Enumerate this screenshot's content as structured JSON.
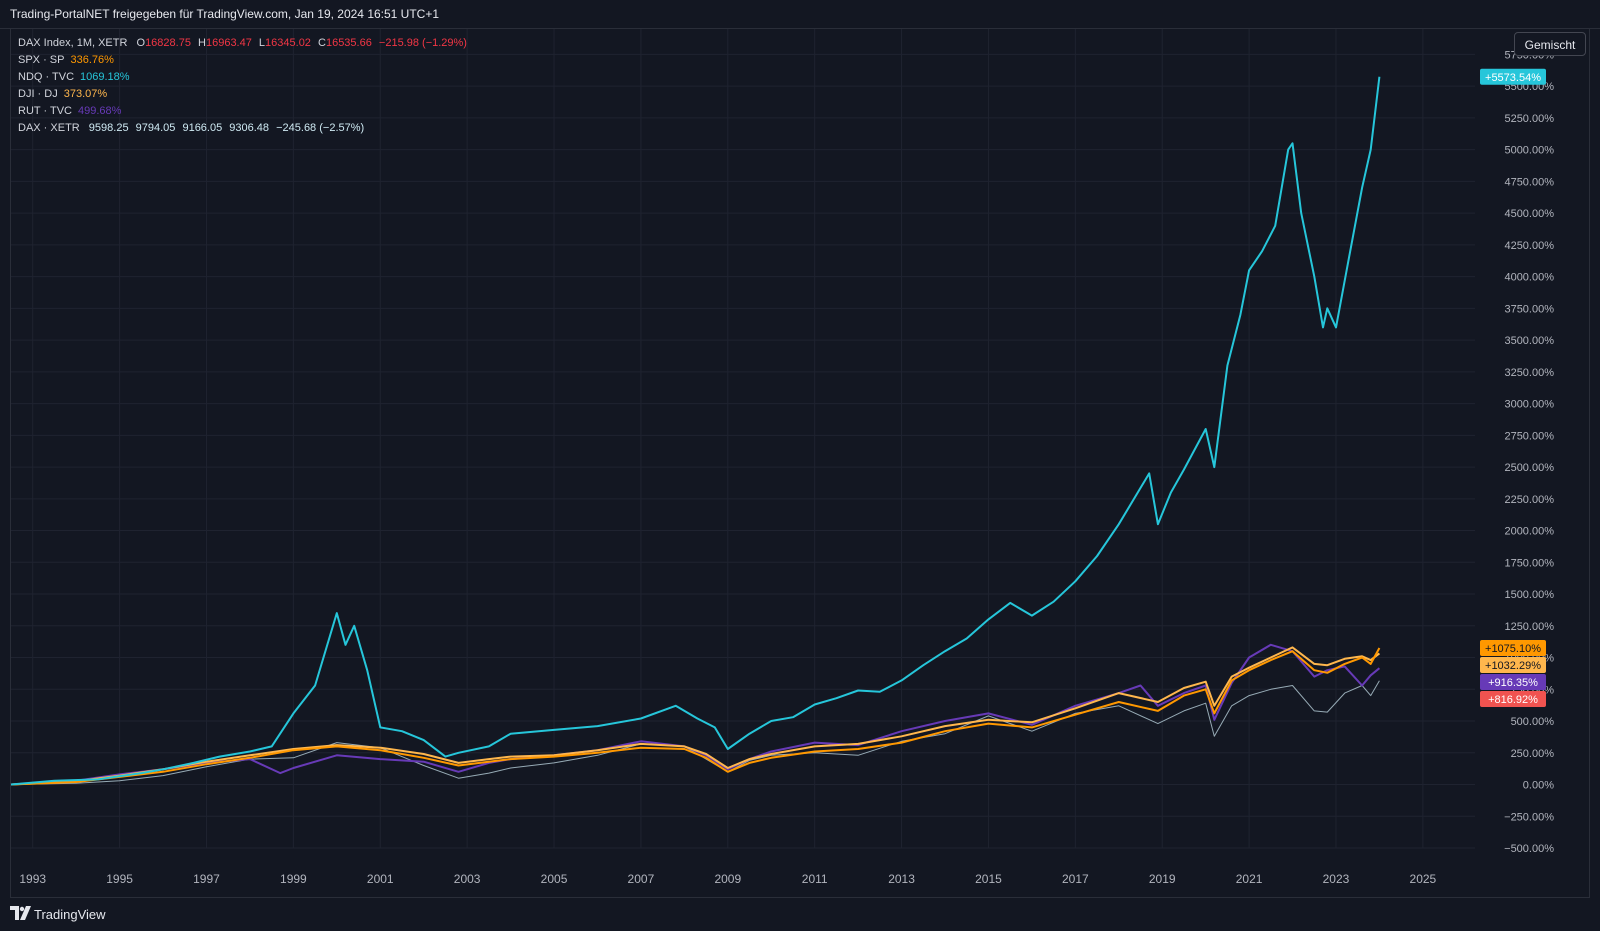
{
  "header": {
    "title": "Trading-PortalNET freigegeben für TradingView.com, Jan 19, 2024 16:51 UTC+1"
  },
  "legend": {
    "main": {
      "symbol": "DAX Index, 1M, XETR",
      "o_label": "O",
      "o": "16828.75",
      "h_label": "H",
      "h": "16963.47",
      "l_label": "L",
      "l": "16345.02",
      "c_label": "C",
      "c": "16535.66",
      "change": "−215.98 (−1.29%)",
      "color": "#f23645"
    },
    "rows": [
      {
        "symbol": "SPX · SP",
        "value": "336.76%",
        "color": "#ff9800"
      },
      {
        "symbol": "NDQ · TVC",
        "value": "1069.18%",
        "color": "#26c6da"
      },
      {
        "symbol": "DJI · DJ",
        "value": "373.07%",
        "color": "#ffb74d"
      },
      {
        "symbol": "RUT · TVC",
        "value": "499.68%",
        "color": "#673ab7"
      }
    ],
    "dax": {
      "symbol": "DAX · XETR",
      "o": "9598.25",
      "h": "9794.05",
      "l": "9166.05",
      "c": "9306.48",
      "change": "−245.68 (−2.57%)",
      "color": "#cfeaf3"
    }
  },
  "scale_button": {
    "label": "Gemischt"
  },
  "footer": {
    "brand": "TradingView",
    "icon": "tradingview-logo-icon"
  },
  "chart_data": {
    "type": "line",
    "y_unit": "%",
    "ylim": [
      -500,
      5950
    ],
    "xlim": [
      1992.5,
      2026.2
    ],
    "y_ticks": [
      "5750.00%",
      "5500.00%",
      "5250.00%",
      "5000.00%",
      "4750.00%",
      "4500.00%",
      "4250.00%",
      "4000.00%",
      "3750.00%",
      "3500.00%",
      "3250.00%",
      "3000.00%",
      "2750.00%",
      "2500.00%",
      "2250.00%",
      "2000.00%",
      "1750.00%",
      "1500.00%",
      "1250.00%",
      "1000.00%",
      "750.00%",
      "500.00%",
      "250.00%",
      "0.00%",
      "−250.00%",
      "−500.00%"
    ],
    "y_tick_values": [
      5750,
      5500,
      5250,
      5000,
      4750,
      4500,
      4250,
      4000,
      3750,
      3500,
      3250,
      3000,
      2750,
      2500,
      2250,
      2000,
      1750,
      1500,
      1250,
      1000,
      750,
      500,
      250,
      0,
      -250,
      -500
    ],
    "x_ticks": [
      "1993",
      "1995",
      "1997",
      "1999",
      "2001",
      "2003",
      "2005",
      "2007",
      "2009",
      "2011",
      "2013",
      "2015",
      "2017",
      "2019",
      "2021",
      "2023",
      "2025"
    ],
    "x_tick_values": [
      1993,
      1995,
      1997,
      1999,
      2001,
      2003,
      2005,
      2007,
      2009,
      2011,
      2013,
      2015,
      2017,
      2019,
      2021,
      2023,
      2025
    ],
    "grid": true,
    "series": [
      {
        "name": "NDQ · TVC",
        "color": "#26c6da",
        "last_label": "+5573.54%",
        "points": [
          [
            1992.5,
            0
          ],
          [
            1993.5,
            30
          ],
          [
            1994.5,
            40
          ],
          [
            1995.5,
            90
          ],
          [
            1996,
            120
          ],
          [
            1996.7,
            170
          ],
          [
            1997.3,
            220
          ],
          [
            1998,
            260
          ],
          [
            1998.5,
            300
          ],
          [
            1999,
            560
          ],
          [
            1999.5,
            780
          ],
          [
            2000,
            1350
          ],
          [
            2000.2,
            1100
          ],
          [
            2000.4,
            1250
          ],
          [
            2000.7,
            900
          ],
          [
            2001,
            450
          ],
          [
            2001.5,
            420
          ],
          [
            2002,
            350
          ],
          [
            2002.5,
            220
          ],
          [
            2002.8,
            250
          ],
          [
            2003.5,
            300
          ],
          [
            2004,
            400
          ],
          [
            2005,
            430
          ],
          [
            2006,
            460
          ],
          [
            2007,
            520
          ],
          [
            2007.8,
            620
          ],
          [
            2008.3,
            520
          ],
          [
            2008.7,
            450
          ],
          [
            2009,
            280
          ],
          [
            2009.5,
            400
          ],
          [
            2010,
            500
          ],
          [
            2010.5,
            530
          ],
          [
            2011,
            630
          ],
          [
            2011.5,
            680
          ],
          [
            2012,
            740
          ],
          [
            2012.5,
            730
          ],
          [
            2013,
            820
          ],
          [
            2013.5,
            940
          ],
          [
            2014,
            1050
          ],
          [
            2014.5,
            1150
          ],
          [
            2015,
            1300
          ],
          [
            2015.5,
            1430
          ],
          [
            2016,
            1330
          ],
          [
            2016.5,
            1440
          ],
          [
            2017,
            1600
          ],
          [
            2017.5,
            1800
          ],
          [
            2018,
            2050
          ],
          [
            2018.7,
            2450
          ],
          [
            2018.9,
            2050
          ],
          [
            2019.2,
            2300
          ],
          [
            2019.5,
            2480
          ],
          [
            2020,
            2800
          ],
          [
            2020.2,
            2500
          ],
          [
            2020.5,
            3300
          ],
          [
            2020.8,
            3700
          ],
          [
            2021,
            4050
          ],
          [
            2021.3,
            4200
          ],
          [
            2021.6,
            4400
          ],
          [
            2021.9,
            5000
          ],
          [
            2022,
            5050
          ],
          [
            2022.2,
            4500
          ],
          [
            2022.5,
            4000
          ],
          [
            2022.7,
            3600
          ],
          [
            2022.8,
            3750
          ],
          [
            2023,
            3600
          ],
          [
            2023.3,
            4150
          ],
          [
            2023.6,
            4700
          ],
          [
            2023.8,
            5000
          ],
          [
            2024,
            5573.54
          ]
        ]
      },
      {
        "name": "SPX · SP",
        "color": "#ff9800",
        "last_label": "+1075.10%",
        "points": [
          [
            1992.5,
            0
          ],
          [
            1994,
            20
          ],
          [
            1995,
            60
          ],
          [
            1996,
            100
          ],
          [
            1997,
            160
          ],
          [
            1998,
            210
          ],
          [
            1999,
            270
          ],
          [
            2000,
            300
          ],
          [
            2001,
            270
          ],
          [
            2002,
            210
          ],
          [
            2002.8,
            150
          ],
          [
            2003.5,
            180
          ],
          [
            2004,
            200
          ],
          [
            2005,
            220
          ],
          [
            2006,
            250
          ],
          [
            2007,
            290
          ],
          [
            2008,
            280
          ],
          [
            2008.5,
            210
          ],
          [
            2009,
            100
          ],
          [
            2009.5,
            170
          ],
          [
            2010,
            210
          ],
          [
            2011,
            260
          ],
          [
            2012,
            280
          ],
          [
            2013,
            330
          ],
          [
            2014,
            420
          ],
          [
            2015,
            480
          ],
          [
            2016,
            450
          ],
          [
            2017,
            550
          ],
          [
            2018,
            650
          ],
          [
            2018.9,
            580
          ],
          [
            2019.5,
            700
          ],
          [
            2020,
            750
          ],
          [
            2020.2,
            560
          ],
          [
            2020.6,
            820
          ],
          [
            2021,
            900
          ],
          [
            2021.5,
            980
          ],
          [
            2022,
            1050
          ],
          [
            2022.5,
            900
          ],
          [
            2022.8,
            880
          ],
          [
            2023.2,
            950
          ],
          [
            2023.6,
            1000
          ],
          [
            2023.8,
            950
          ],
          [
            2024,
            1075.1
          ]
        ]
      },
      {
        "name": "DJI · DJ",
        "color": "#ffb74d",
        "last_label": "+1032.29%",
        "points": [
          [
            1992.5,
            0
          ],
          [
            1994,
            25
          ],
          [
            1995,
            70
          ],
          [
            1996,
            120
          ],
          [
            1997,
            180
          ],
          [
            1998,
            230
          ],
          [
            1999,
            280
          ],
          [
            2000,
            310
          ],
          [
            2001,
            290
          ],
          [
            2002,
            240
          ],
          [
            2002.8,
            170
          ],
          [
            2003.5,
            200
          ],
          [
            2004,
            220
          ],
          [
            2005,
            230
          ],
          [
            2006,
            270
          ],
          [
            2007,
            320
          ],
          [
            2008,
            300
          ],
          [
            2008.5,
            240
          ],
          [
            2009,
            130
          ],
          [
            2009.5,
            200
          ],
          [
            2010,
            240
          ],
          [
            2011,
            300
          ],
          [
            2012,
            320
          ],
          [
            2013,
            380
          ],
          [
            2014,
            460
          ],
          [
            2015,
            510
          ],
          [
            2016,
            490
          ],
          [
            2017,
            600
          ],
          [
            2018,
            720
          ],
          [
            2018.9,
            650
          ],
          [
            2019.5,
            760
          ],
          [
            2020,
            810
          ],
          [
            2020.2,
            620
          ],
          [
            2020.6,
            850
          ],
          [
            2021,
            920
          ],
          [
            2021.5,
            1000
          ],
          [
            2022,
            1080
          ],
          [
            2022.5,
            950
          ],
          [
            2022.8,
            940
          ],
          [
            2023.2,
            990
          ],
          [
            2023.6,
            1010
          ],
          [
            2023.8,
            980
          ],
          [
            2024,
            1032.29
          ]
        ]
      },
      {
        "name": "RUT · TVC",
        "color": "#673ab7",
        "last_label": "+916.35%",
        "points": [
          [
            1992.5,
            0
          ],
          [
            1994,
            30
          ],
          [
            1995,
            80
          ],
          [
            1996,
            120
          ],
          [
            1997,
            170
          ],
          [
            1998,
            200
          ],
          [
            1998.7,
            90
          ],
          [
            1999,
            130
          ],
          [
            2000,
            230
          ],
          [
            2001,
            200
          ],
          [
            2002,
            180
          ],
          [
            2002.8,
            100
          ],
          [
            2003.5,
            170
          ],
          [
            2004,
            200
          ],
          [
            2005,
            230
          ],
          [
            2006,
            270
          ],
          [
            2007,
            340
          ],
          [
            2008,
            300
          ],
          [
            2008.5,
            230
          ],
          [
            2009,
            120
          ],
          [
            2009.5,
            200
          ],
          [
            2010,
            260
          ],
          [
            2011,
            330
          ],
          [
            2012,
            310
          ],
          [
            2013,
            420
          ],
          [
            2014,
            500
          ],
          [
            2015,
            560
          ],
          [
            2016,
            470
          ],
          [
            2017,
            620
          ],
          [
            2018,
            720
          ],
          [
            2018.5,
            780
          ],
          [
            2018.9,
            620
          ],
          [
            2019.5,
            720
          ],
          [
            2020,
            780
          ],
          [
            2020.2,
            510
          ],
          [
            2020.6,
            800
          ],
          [
            2021,
            1000
          ],
          [
            2021.5,
            1100
          ],
          [
            2022,
            1050
          ],
          [
            2022.5,
            850
          ],
          [
            2022.8,
            900
          ],
          [
            2023.2,
            930
          ],
          [
            2023.6,
            780
          ],
          [
            2023.8,
            860
          ],
          [
            2024,
            916.35
          ]
        ]
      },
      {
        "name": "DAX · XETR",
        "color": "#cfeaf3",
        "last_label": "+816.92%",
        "points": [
          [
            1992.5,
            0
          ],
          [
            1994,
            10
          ],
          [
            1995,
            30
          ],
          [
            1996,
            70
          ],
          [
            1997,
            140
          ],
          [
            1998,
            200
          ],
          [
            1999,
            210
          ],
          [
            2000,
            330
          ],
          [
            2001,
            290
          ],
          [
            2002,
            150
          ],
          [
            2002.8,
            50
          ],
          [
            2003.5,
            90
          ],
          [
            2004,
            130
          ],
          [
            2005,
            170
          ],
          [
            2006,
            230
          ],
          [
            2007,
            320
          ],
          [
            2008,
            300
          ],
          [
            2008.5,
            200
          ],
          [
            2009,
            100
          ],
          [
            2009.5,
            190
          ],
          [
            2010,
            230
          ],
          [
            2011,
            250
          ],
          [
            2012,
            230
          ],
          [
            2013,
            340
          ],
          [
            2014,
            400
          ],
          [
            2015,
            540
          ],
          [
            2016,
            420
          ],
          [
            2017,
            560
          ],
          [
            2018,
            620
          ],
          [
            2018.9,
            480
          ],
          [
            2019.5,
            580
          ],
          [
            2020,
            640
          ],
          [
            2020.2,
            380
          ],
          [
            2020.6,
            620
          ],
          [
            2021,
            700
          ],
          [
            2021.5,
            750
          ],
          [
            2022,
            780
          ],
          [
            2022.5,
            580
          ],
          [
            2022.8,
            570
          ],
          [
            2023.2,
            720
          ],
          [
            2023.6,
            780
          ],
          [
            2023.8,
            700
          ],
          [
            2024,
            816.92
          ]
        ]
      }
    ]
  }
}
